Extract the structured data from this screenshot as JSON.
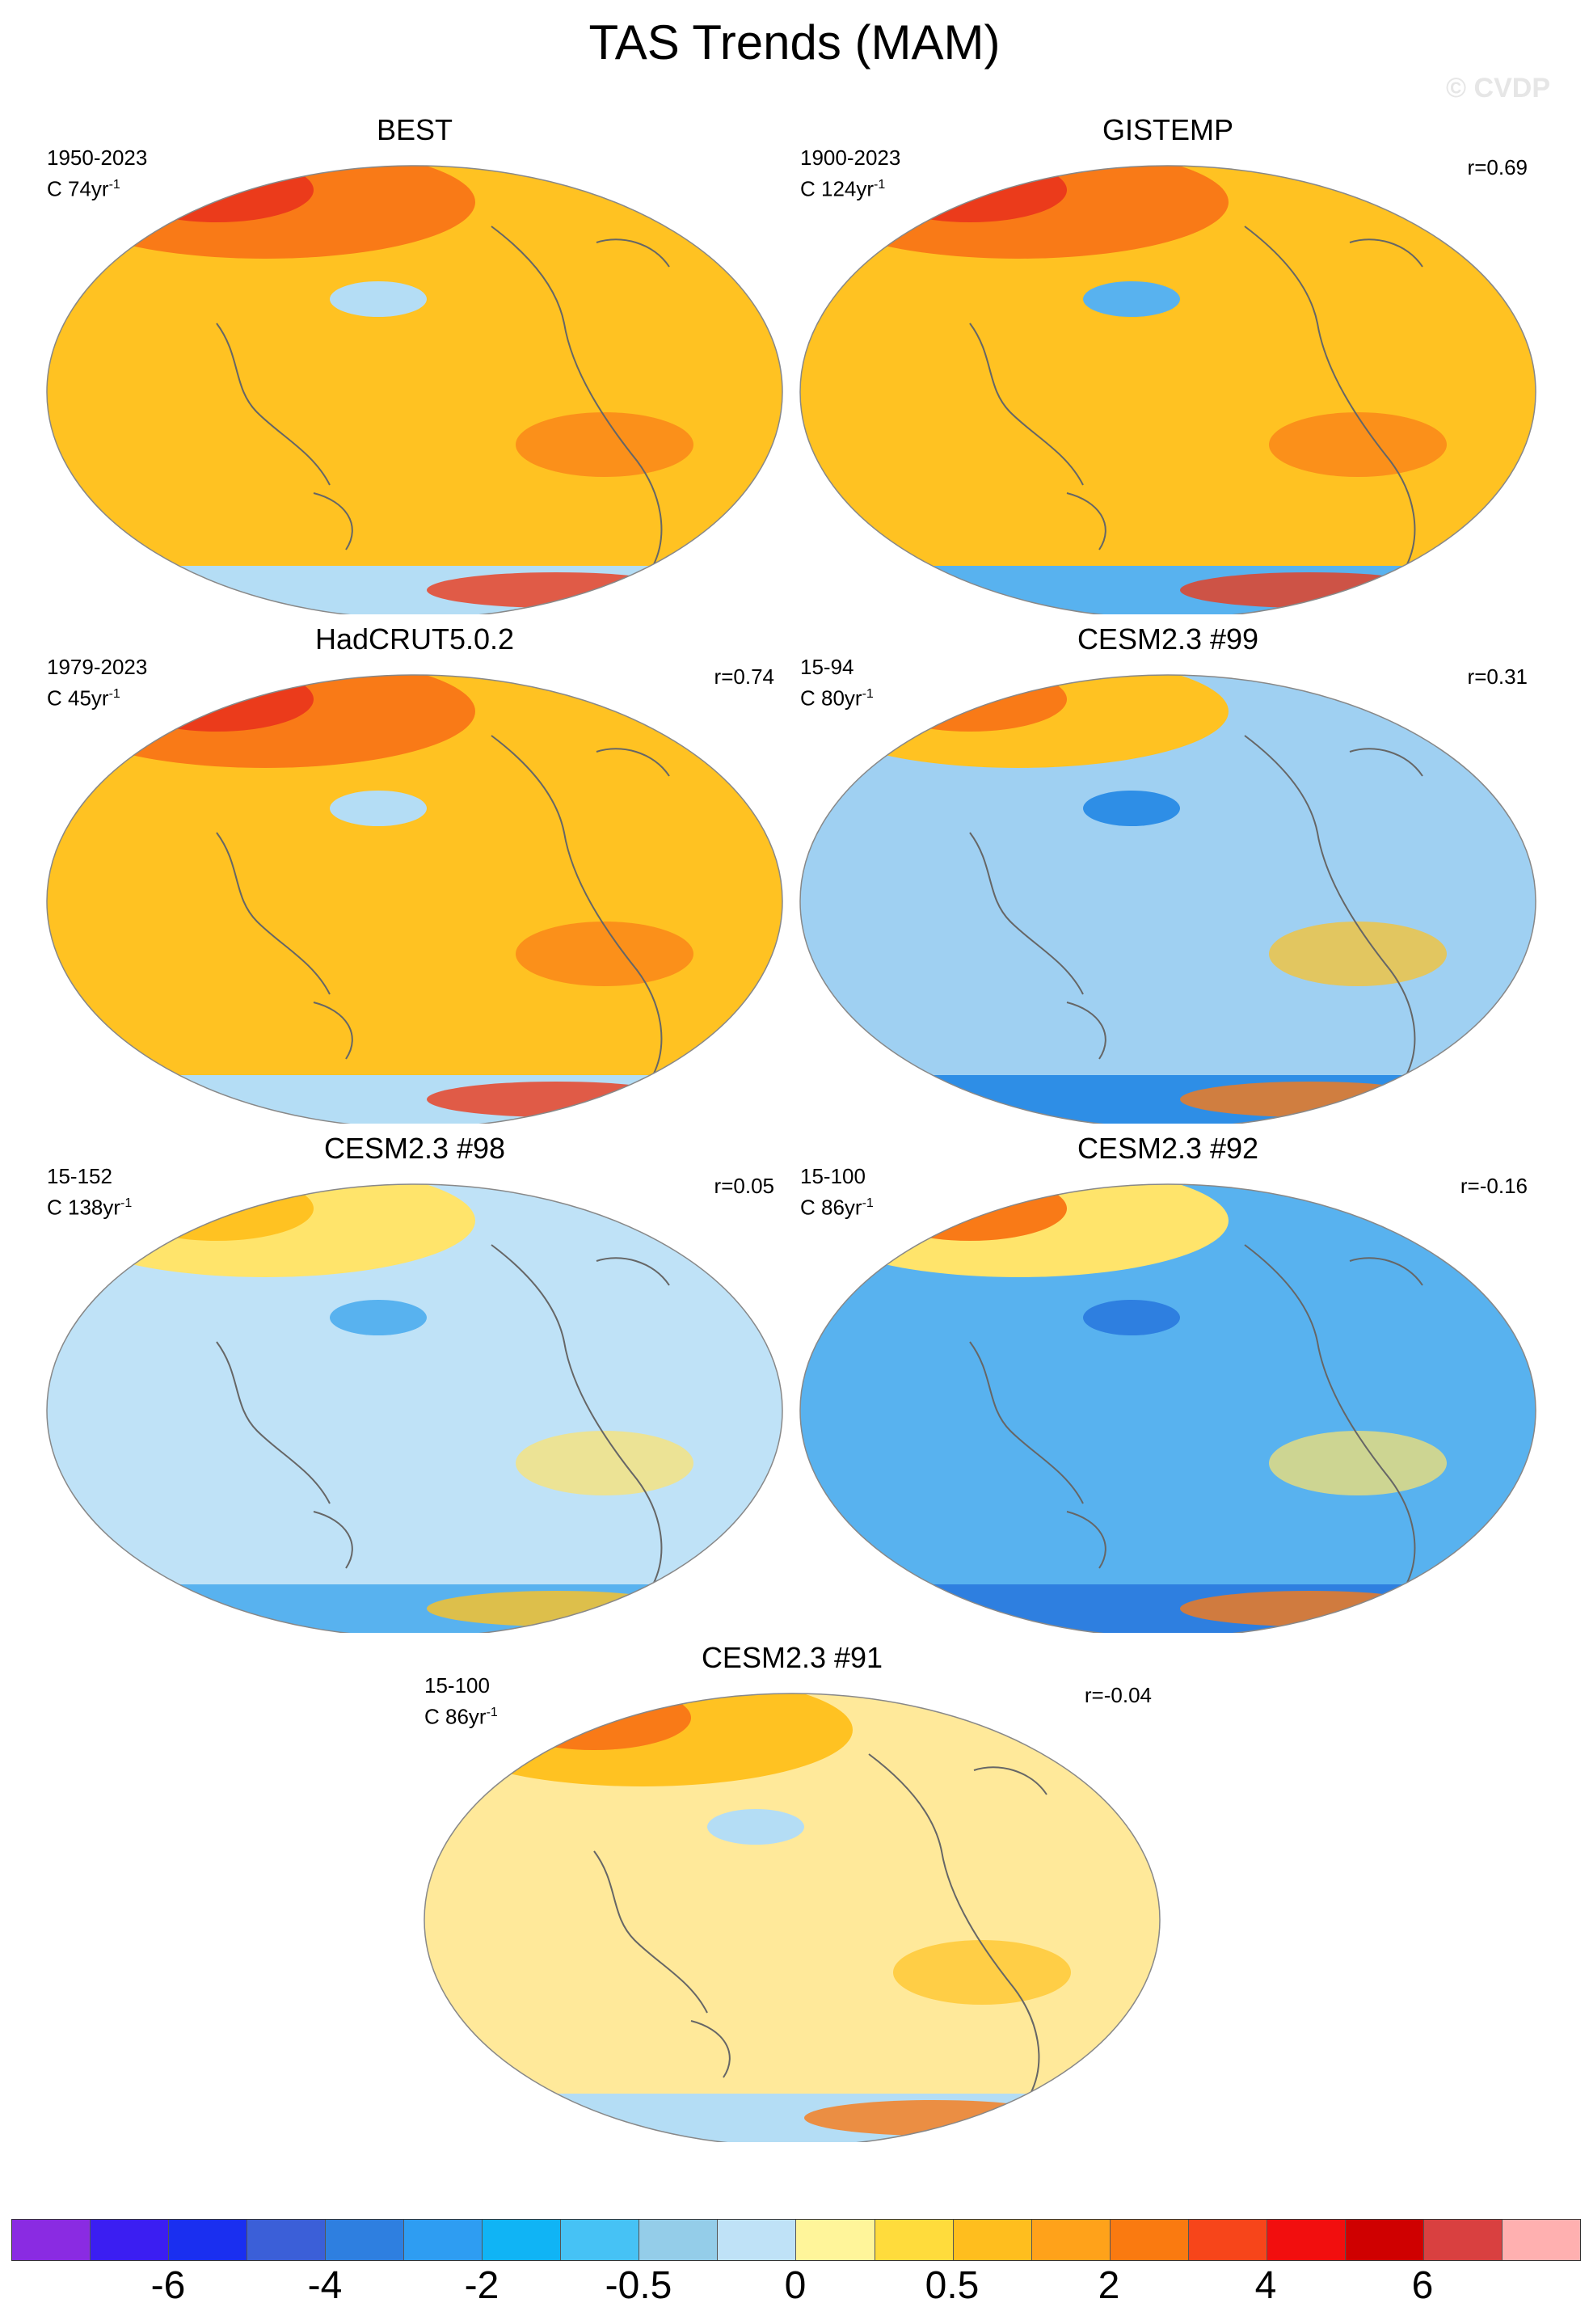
{
  "title": "TAS Trends (MAM)",
  "watermark": "© CVDP",
  "panels": [
    {
      "name": "BEST",
      "period": "1950-2023",
      "rate_prefix": "C 74yr",
      "rate_exp": "-1",
      "corr": "",
      "dominant": "#ffc222",
      "warm": "#f97a17",
      "hot": "#eb3b1b",
      "cool": "#b4ddf5"
    },
    {
      "name": "GISTEMP",
      "period": "1900-2023",
      "rate_prefix": "C 124yr",
      "rate_exp": "-1",
      "corr": "r=0.69",
      "dominant": "#ffc222",
      "warm": "#f97a17",
      "hot": "#eb3b1b",
      "cool": "#58b2ef"
    },
    {
      "name": "HadCRUT5.0.2",
      "period": "1979-2023",
      "rate_prefix": "C 45yr",
      "rate_exp": "-1",
      "corr": "r=0.74",
      "dominant": "#ffc222",
      "warm": "#f97a17",
      "hot": "#eb3b1b",
      "cool": "#b4ddf5"
    },
    {
      "name": "CESM2.3 #99",
      "period": "15-94",
      "rate_prefix": "C 80yr",
      "rate_exp": "-1",
      "corr": "r=0.31",
      "dominant": "#9fd0f2",
      "warm": "#ffc222",
      "hot": "#f97a17",
      "cool": "#2e8ee6"
    },
    {
      "name": "CESM2.3 #98",
      "period": "15-152",
      "rate_prefix": "C 138yr",
      "rate_exp": "-1",
      "corr": "r=0.05",
      "dominant": "#bfe2f7",
      "warm": "#ffe46b",
      "hot": "#ffc222",
      "cool": "#58b2ef"
    },
    {
      "name": "CESM2.3 #92",
      "period": "15-100",
      "rate_prefix": "C 86yr",
      "rate_exp": "-1",
      "corr": "r=-0.16",
      "dominant": "#58b2ef",
      "warm": "#ffe46b",
      "hot": "#f97a17",
      "cool": "#2e7fe0"
    },
    {
      "name": "CESM2.3 #91",
      "period": "15-100",
      "rate_prefix": "C 86yr",
      "rate_exp": "-1",
      "corr": "r=-0.04",
      "dominant": "#ffe99a",
      "warm": "#ffc222",
      "hot": "#f97a17",
      "cool": "#b4ddf5"
    }
  ],
  "colorbar": {
    "colors": [
      "#8a2be2",
      "#3b1ef2",
      "#1a2ff0",
      "#3b5fd8",
      "#2e7fe0",
      "#2e9df2",
      "#10b4f5",
      "#46c2f5",
      "#94cde9",
      "#bfe2f7",
      "#fff59a",
      "#ffdc3c",
      "#ffbe1e",
      "#ffa21a",
      "#fa7a10",
      "#f7451a",
      "#f20e0e",
      "#cf0000",
      "#d94040",
      "#ffb0b0"
    ],
    "labels": [
      "-6",
      "-4",
      "-2",
      "-0.5",
      "0",
      "0.5",
      "2",
      "4",
      "6"
    ]
  }
}
